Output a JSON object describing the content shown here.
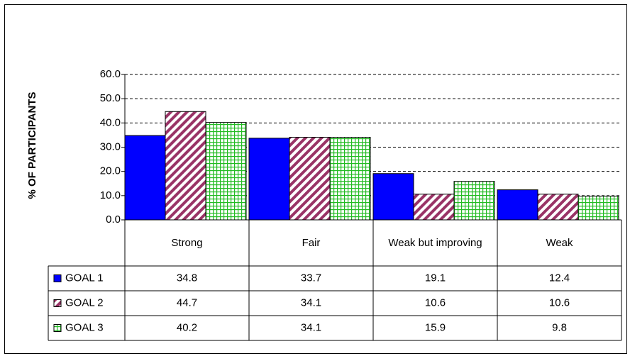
{
  "chart_data": {
    "type": "bar",
    "y_label": "% OF PARTICIPANTS",
    "categories": [
      "Strong",
      "Fair",
      "Weak but improving",
      "Weak"
    ],
    "series": [
      {
        "name": "GOAL 1",
        "color": "#0000ff",
        "pattern": "solid",
        "values": [
          34.8,
          33.7,
          19.1,
          12.4
        ]
      },
      {
        "name": "GOAL 2",
        "color": "#993366",
        "pattern": "diagonal",
        "values": [
          44.7,
          34.1,
          10.6,
          10.6
        ]
      },
      {
        "name": "GOAL 3",
        "color": "#22bb22",
        "pattern": "grid",
        "values": [
          40.2,
          34.1,
          15.9,
          9.8
        ]
      }
    ],
    "ylim": [
      0,
      60
    ],
    "yticks": [
      {
        "value": 0,
        "label": "0.0"
      },
      {
        "value": 10,
        "label": "10.0"
      },
      {
        "value": 20,
        "label": "20.0"
      },
      {
        "value": 30,
        "label": "30.0"
      },
      {
        "value": 40,
        "label": "40.0"
      },
      {
        "value": 50,
        "label": "50.0"
      },
      {
        "value": 60,
        "label": "60.0"
      }
    ],
    "grid": true,
    "data_table": true
  }
}
